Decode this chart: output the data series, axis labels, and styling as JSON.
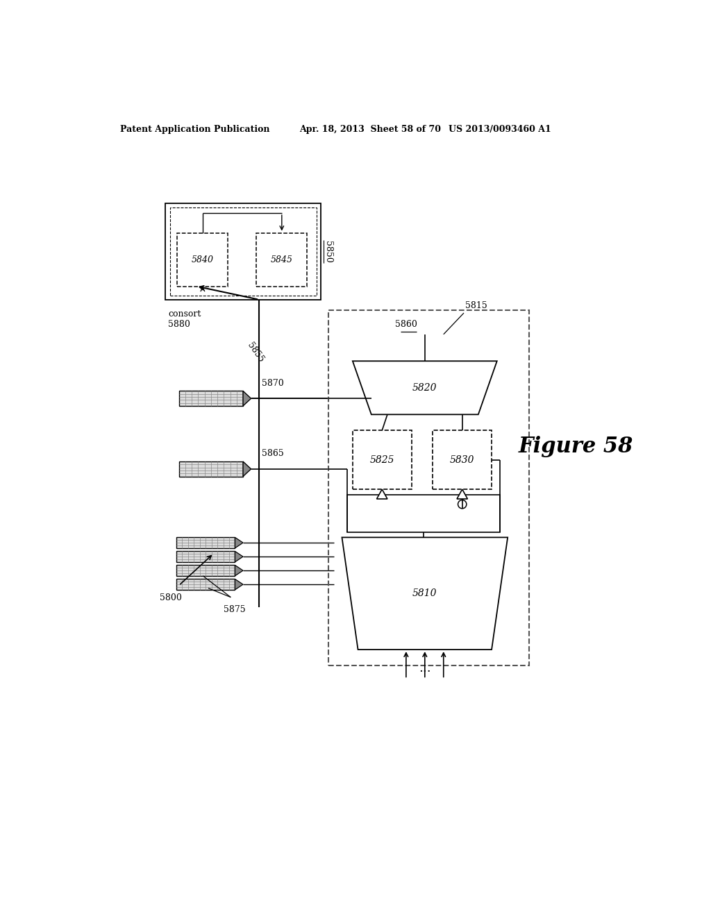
{
  "bg_color": "#ffffff",
  "header_left": "Patent Application Publication",
  "header_mid": "Apr. 18, 2013  Sheet 58 of 70",
  "header_right": "US 2013/0093460 A1",
  "figure_label": "Figure 58",
  "label_5800": "5800",
  "label_5815": "5815",
  "label_5850": "5850",
  "label_5880": "consort\n5880",
  "label_5840": "5840",
  "label_5845": "5845",
  "label_5855": "5855",
  "label_5870": "5870",
  "label_5865": "5865",
  "label_5875": "5875",
  "label_5860": "5860",
  "label_5820": "5820",
  "label_5825": "5825",
  "label_5830": "5830",
  "label_5810": "5810"
}
